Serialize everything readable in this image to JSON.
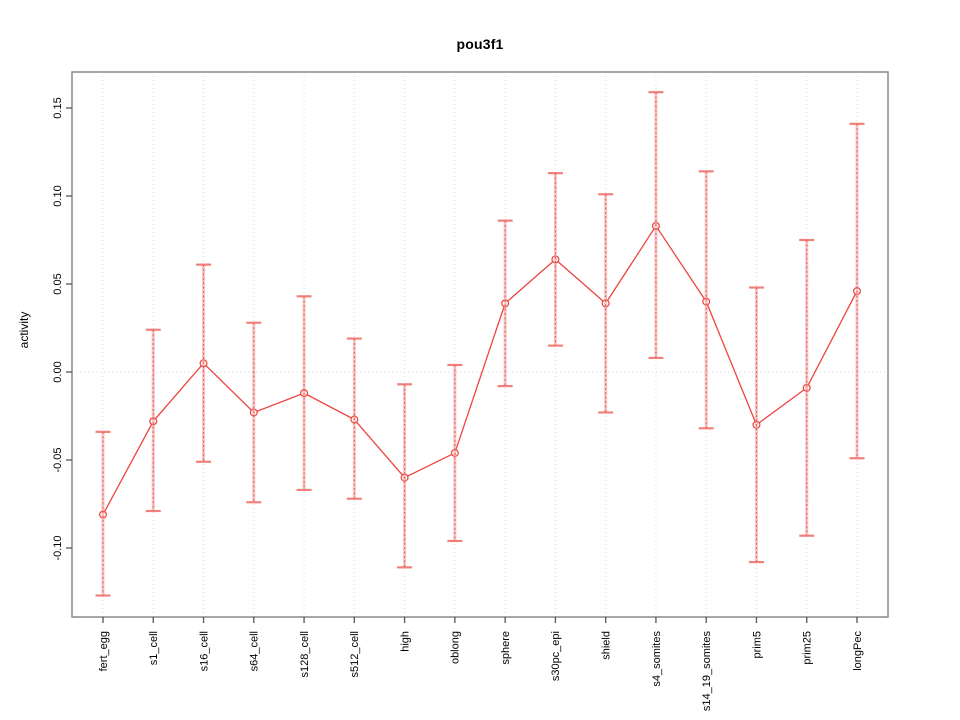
{
  "window": {
    "background": "#ffffff"
  },
  "chart_data": {
    "type": "line",
    "title": "pou3f1",
    "xlabel": "",
    "ylabel": "activity",
    "legend": "none",
    "grid": {
      "vertical_dotted": true,
      "zero_line_dotted": true
    },
    "categories": [
      "fert_egg",
      "s1_cell",
      "s16_cell",
      "s64_cell",
      "s128_cell",
      "s512_cell",
      "high",
      "oblong",
      "sphere",
      "s30pc_epi",
      "shield",
      "s4_somites",
      "s14_19_somites",
      "prim5",
      "prim25",
      "longPec"
    ],
    "series": [
      {
        "name": "activity",
        "values": [
          -0.081,
          -0.028,
          0.005,
          -0.023,
          -0.012,
          -0.027,
          -0.06,
          -0.046,
          0.039,
          0.064,
          0.039,
          0.083,
          0.04,
          -0.03,
          -0.009,
          0.046
        ],
        "err_low": [
          -0.127,
          -0.079,
          -0.051,
          -0.074,
          -0.067,
          -0.072,
          -0.111,
          -0.096,
          -0.008,
          0.015,
          -0.023,
          0.008,
          -0.032,
          -0.108,
          -0.093,
          -0.049
        ],
        "err_high": [
          -0.034,
          0.024,
          0.061,
          0.028,
          0.043,
          0.019,
          -0.007,
          0.004,
          0.086,
          0.113,
          0.101,
          0.159,
          0.114,
          0.048,
          0.075,
          0.141
        ]
      }
    ],
    "yticks": [
      0.15,
      0.1,
      0.05,
      0.0,
      -0.05,
      -0.1
    ],
    "ytick_labels": [
      "0.15",
      "0.10",
      "0.05",
      "0.00",
      "-0.05",
      "-0.10"
    ],
    "ylim": [
      -0.139,
      0.17
    ],
    "colors": {
      "line": "#ed4540",
      "marker": "#e8423d",
      "error_bar": "#ef6b66",
      "error_bar_light": "#f58d89",
      "error_bar_dash": "#e2403a",
      "grid": "#d9d9d9",
      "box": "#8a8a8a",
      "tick": "#565656",
      "text": "#000000"
    }
  }
}
